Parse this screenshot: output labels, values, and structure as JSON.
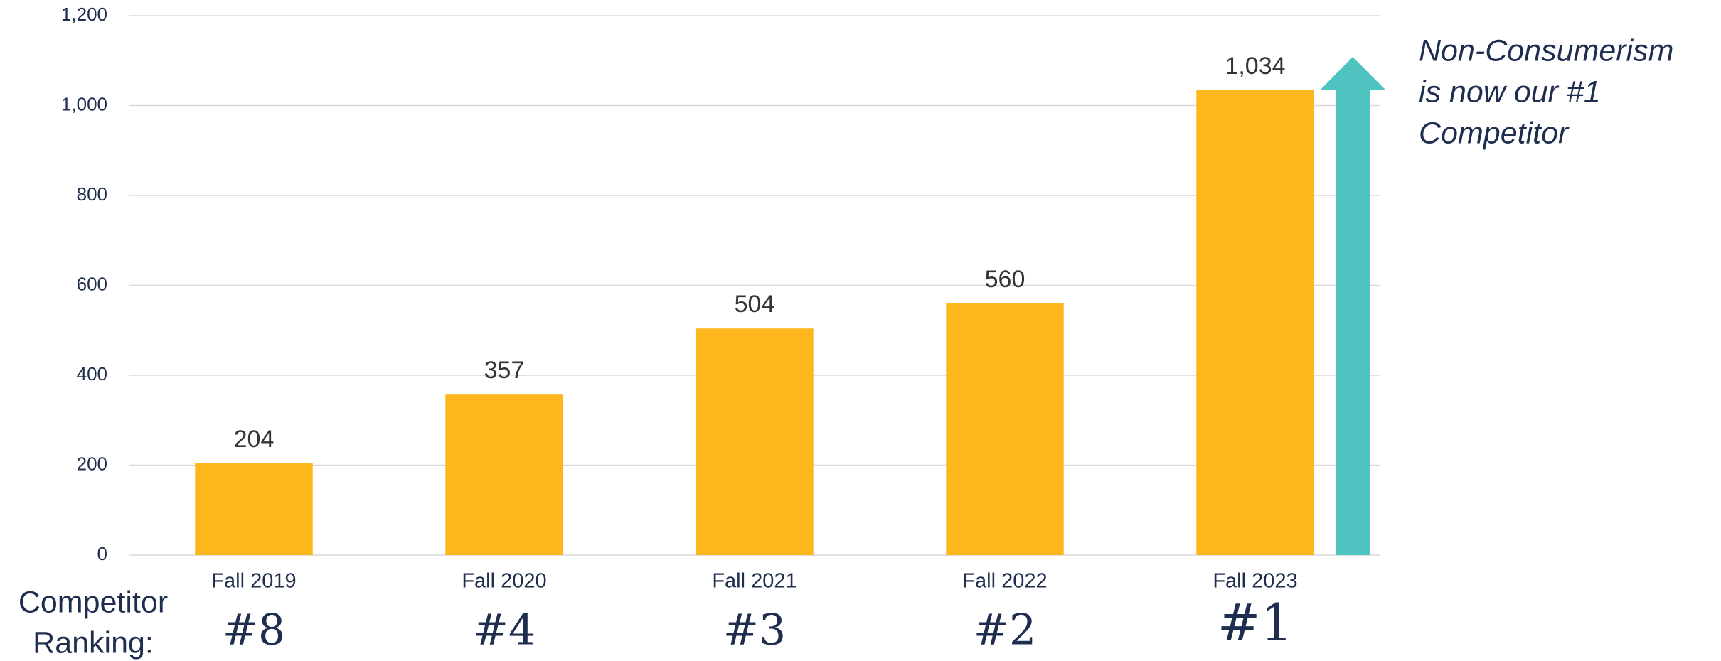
{
  "chart_data": {
    "type": "bar",
    "categories": [
      "Fall 2019",
      "Fall 2020",
      "Fall 2021",
      "Fall 2022",
      "Fall 2023"
    ],
    "values": [
      204,
      357,
      504,
      560,
      1034
    ],
    "value_labels": [
      "204",
      "357",
      "504",
      "560",
      "1,034"
    ],
    "color": "#fdb71c",
    "ylim": [
      0,
      1200
    ],
    "yticks": [
      0,
      200,
      400,
      600,
      800,
      {
        "value": 1000,
        "label": "1,000"
      },
      {
        "value": 1200,
        "label": "1,200"
      }
    ],
    "grid": true,
    "annotation": [
      "Non-Consumerism",
      "is now our #1",
      "Competitor"
    ],
    "rankings_label": [
      "Competitor",
      "Ranking:"
    ],
    "rankings": [
      "#8",
      "#4",
      "#3",
      "#2",
      "#1"
    ]
  }
}
